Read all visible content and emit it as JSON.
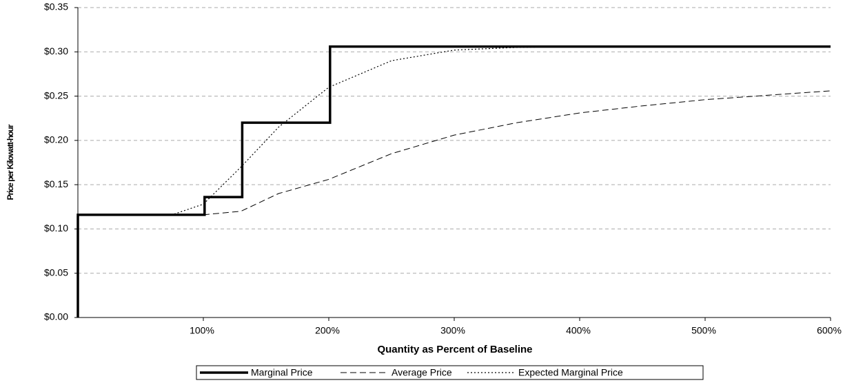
{
  "chart_data": {
    "type": "line",
    "x_label": "Quantity as Percent of Baseline",
    "y_label": "Price per Kilowatt-hour",
    "xlim": [
      0,
      600
    ],
    "xticks": [
      {
        "value": 100,
        "label": "100%"
      },
      {
        "value": 200,
        "label": "200%"
      },
      {
        "value": 300,
        "label": "300%"
      },
      {
        "value": 400,
        "label": "400%"
      },
      {
        "value": 500,
        "label": "500%"
      },
      {
        "value": 600,
        "label": "600%"
      }
    ],
    "ylim": [
      0,
      0.35
    ],
    "yticks": [
      {
        "value": 0,
        "label": "$0.00"
      },
      {
        "value": 0.05,
        "label": "$0.05"
      },
      {
        "value": 0.1,
        "label": "$0.10"
      },
      {
        "value": 0.15,
        "label": "$0.15"
      },
      {
        "value": 0.2,
        "label": "$0.20"
      },
      {
        "value": 0.25,
        "label": "$0.25"
      },
      {
        "value": 0.3,
        "label": "$0.30"
      },
      {
        "value": 0.35,
        "label": "$0.35"
      }
    ],
    "grid": true,
    "legend": "bottom",
    "series": [
      {
        "name": "Marginal Price",
        "color": "#000000",
        "dash": "solid",
        "x": [
          0,
          0,
          101,
          101,
          131,
          131,
          201,
          201,
          600
        ],
        "values": [
          0,
          0.116,
          0.116,
          0.136,
          0.136,
          0.22,
          0.22,
          0.306,
          0.306
        ]
      },
      {
        "name": "Average Price",
        "color": "#000000",
        "dash": "dashed",
        "x": [
          0,
          100,
          130,
          160,
          200,
          250,
          300,
          350,
          400,
          450,
          500,
          550,
          600
        ],
        "values": [
          0.116,
          0.116,
          0.12,
          0.14,
          0.156,
          0.185,
          0.206,
          0.22,
          0.231,
          0.239,
          0.246,
          0.251,
          0.256
        ]
      },
      {
        "name": "Expected Marginal Price",
        "color": "#000000",
        "dash": "dotted",
        "x": [
          0,
          75,
          100,
          130,
          160,
          200,
          250,
          300,
          350,
          400,
          600
        ],
        "values": [
          0.116,
          0.116,
          0.128,
          0.17,
          0.215,
          0.26,
          0.29,
          0.302,
          0.305,
          0.306,
          0.306
        ]
      }
    ]
  }
}
